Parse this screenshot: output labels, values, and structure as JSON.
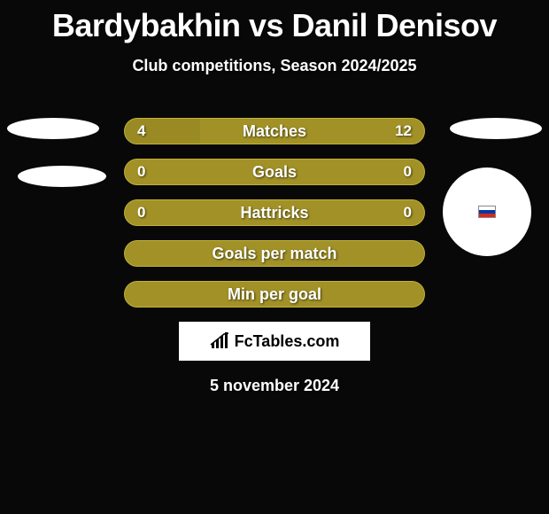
{
  "header": {
    "title": "Bardybakhin vs Danil Denisov",
    "subtitle": "Club competitions, Season 2024/2025"
  },
  "colors": {
    "background": "#080808",
    "bar_primary": "#a19126",
    "bar_dark": "#998a24",
    "bar_border": "#c2b23a",
    "text": "#ffffff",
    "brand_bg": "#ffffff",
    "brand_text": "#000000"
  },
  "stats": [
    {
      "label": "Matches",
      "left_value": "4",
      "right_value": "12",
      "left_pct": 25,
      "right_pct": 75,
      "left_color": "#998a24",
      "right_color": "#a19126",
      "show_values": true
    },
    {
      "label": "Goals",
      "left_value": "0",
      "right_value": "0",
      "left_pct": 50,
      "right_pct": 50,
      "left_color": "#a19126",
      "right_color": "#a19126",
      "show_values": true
    },
    {
      "label": "Hattricks",
      "left_value": "0",
      "right_value": "0",
      "left_pct": 50,
      "right_pct": 50,
      "left_color": "#a19126",
      "right_color": "#a19126",
      "show_values": true
    },
    {
      "label": "Goals per match",
      "left_value": "",
      "right_value": "",
      "left_pct": 50,
      "right_pct": 50,
      "left_color": "#a19126",
      "right_color": "#a19126",
      "show_values": false
    },
    {
      "label": "Min per goal",
      "left_value": "",
      "right_value": "",
      "left_pct": 50,
      "right_pct": 50,
      "left_color": "#a19126",
      "right_color": "#a19126",
      "show_values": false
    }
  ],
  "branding": {
    "site": "FcTables.com"
  },
  "footer": {
    "date": "5 november 2024"
  }
}
